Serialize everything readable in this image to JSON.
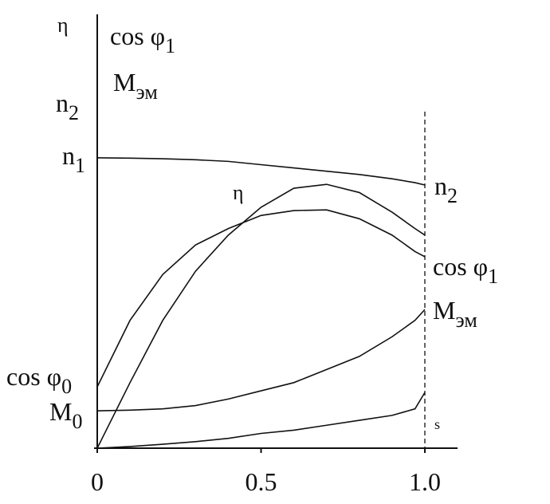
{
  "chart_data": {
    "type": "line",
    "xlim": [
      0,
      1.1
    ],
    "ylim": [
      0,
      1.3
    ],
    "xticks": [
      0,
      0.5,
      {
        "value": 1,
        "label": "1.0"
      }
    ],
    "axis_labels": [
      {
        "text": "η",
        "sub": ""
      },
      {
        "text": "cos φ",
        "sub": "1"
      },
      {
        "text": "M",
        "sub": "эм"
      },
      {
        "text": "n",
        "sub": "2"
      }
    ],
    "start_labels": [
      {
        "text": "n",
        "sub": "1"
      },
      {
        "text": "cos φ",
        "sub": "0"
      },
      {
        "text": "M",
        "sub": "0"
      }
    ],
    "x": [
      0,
      0.1,
      0.2,
      0.3,
      0.4,
      0.5,
      0.6,
      0.7,
      0.8,
      0.9,
      0.97,
      1.0
    ],
    "series": [
      {
        "name": "n",
        "sub": "2",
        "color": "#111",
        "values": [
          0.886,
          0.885,
          0.883,
          0.88,
          0.875,
          0.865,
          0.855,
          0.845,
          0.835,
          0.822,
          0.81,
          0.803
        ]
      },
      {
        "name": "η",
        "sub": "",
        "color": "#111",
        "values": [
          0,
          0.2,
          0.39,
          0.54,
          0.65,
          0.735,
          0.793,
          0.805,
          0.78,
          0.72,
          0.67,
          0.65
        ]
      },
      {
        "name": "cos φ",
        "sub": "1",
        "color": "#111",
        "values": [
          0.187,
          0.39,
          0.53,
          0.62,
          0.67,
          0.71,
          0.725,
          0.727,
          0.7,
          0.65,
          0.6,
          0.584
        ]
      },
      {
        "name": "M",
        "sub": "эм",
        "color": "#111",
        "values": [
          0.114,
          0.116,
          0.12,
          0.13,
          0.15,
          0.175,
          0.2,
          0.24,
          0.28,
          0.34,
          0.39,
          0.423
        ]
      },
      {
        "name": "s",
        "sub": "",
        "color": "#111",
        "values": [
          0,
          0.005,
          0.012,
          0.02,
          0.03,
          0.045,
          0.055,
          0.07,
          0.085,
          0.1,
          0.12,
          0.17
        ]
      }
    ]
  }
}
